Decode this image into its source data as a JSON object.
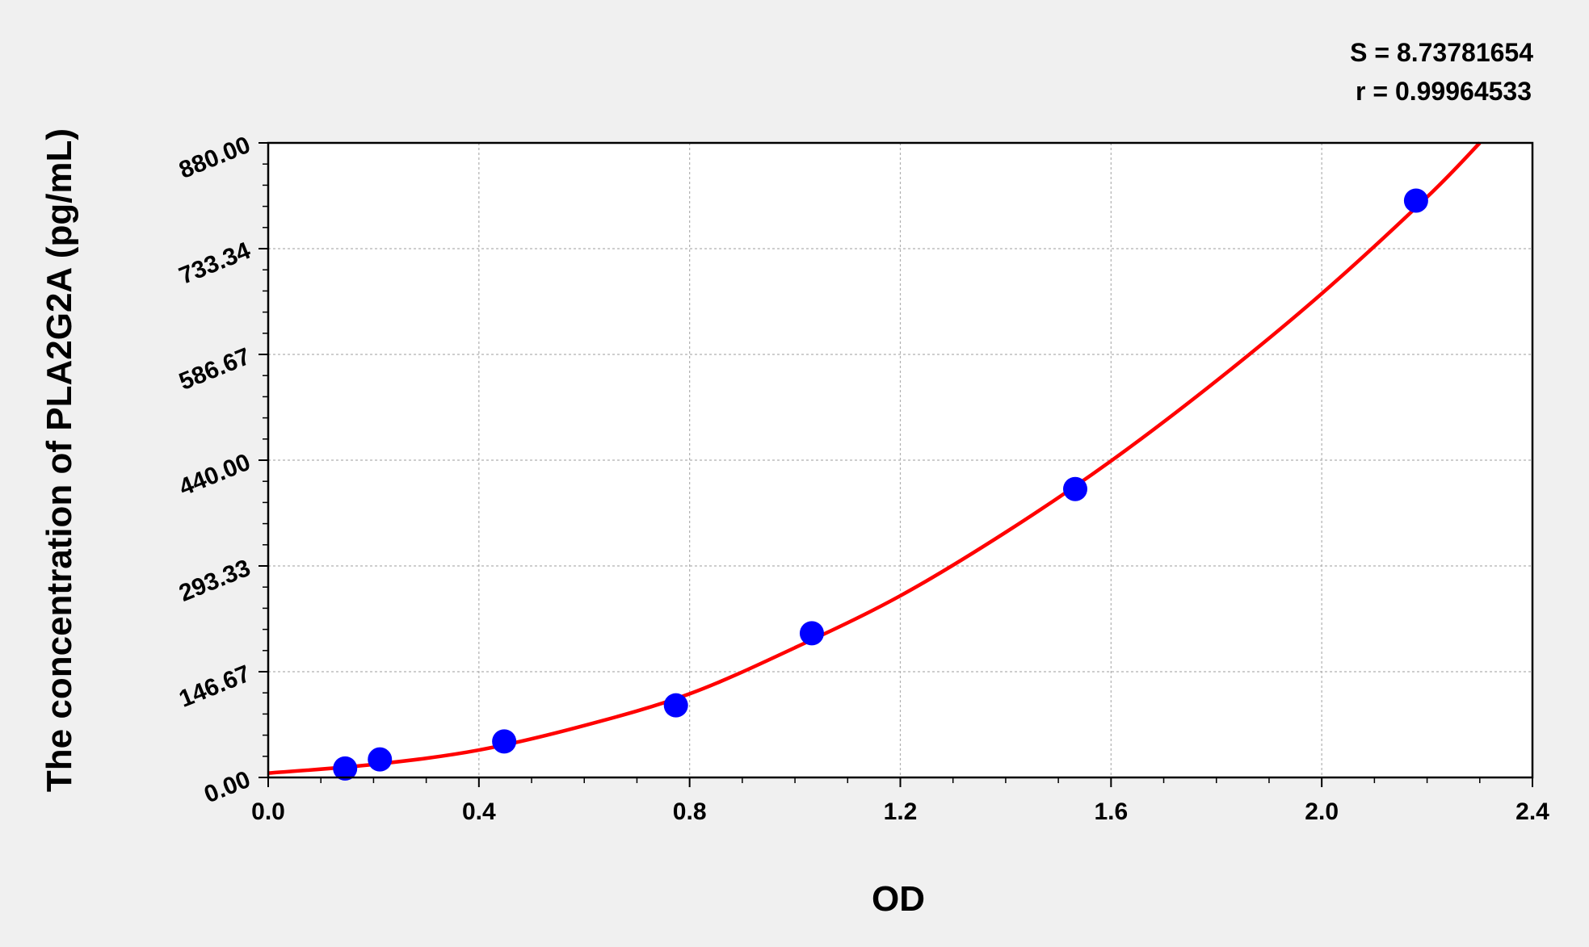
{
  "chart_data": {
    "type": "scatter",
    "xlabel": "OD",
    "ylabel": "The concentration of PLA2G2A (pg/mL)",
    "xlim": [
      0.0,
      2.4
    ],
    "ylim": [
      0.0,
      880.0
    ],
    "x_ticks": [
      "0.0",
      "0.4",
      "0.8",
      "1.2",
      "1.6",
      "2.0",
      "2.4"
    ],
    "y_ticks": [
      "0.00",
      "146.67",
      "293.33",
      "440.00",
      "586.67",
      "733.34",
      "880.00"
    ],
    "grid": true,
    "stats": [
      "S = 8.73781654",
      "r = 0.99964533"
    ],
    "points": {
      "x": [
        0.146,
        0.212,
        0.448,
        0.774,
        1.032,
        1.532,
        2.179
      ],
      "y": [
        12.5,
        25,
        50,
        100,
        200,
        400,
        800
      ],
      "color": "#0000ff"
    },
    "fit_curve": {
      "x": [
        0.0,
        0.2,
        0.4,
        0.6,
        0.8,
        1.0,
        1.2,
        1.4,
        1.6,
        1.8,
        2.0,
        2.2,
        2.3
      ],
      "y": [
        6,
        18,
        38,
        72,
        116,
        180,
        252,
        340,
        439,
        550,
        671,
        805,
        880
      ],
      "color": "#ff0000"
    }
  }
}
